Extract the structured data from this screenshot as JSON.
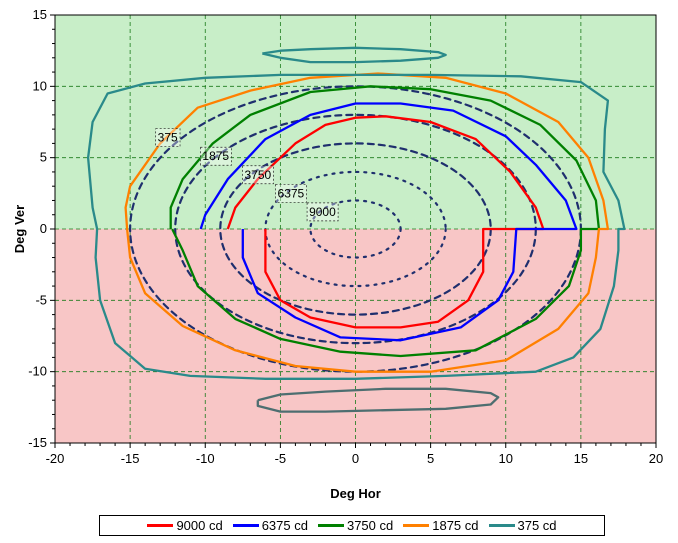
{
  "chart_data": {
    "type": "line",
    "title": "",
    "xlabel": "Deg Hor",
    "ylabel": "Deg Ver",
    "xlim": [
      -20,
      20
    ],
    "ylim": [
      -15,
      15
    ],
    "xticks": [
      "-20",
      "-15",
      "-10",
      "-5",
      "0",
      "5",
      "10",
      "15",
      "20"
    ],
    "yticks": [
      "15",
      "10",
      "5",
      "0",
      "-5",
      "-10",
      "-15"
    ],
    "grid": true,
    "legend_position": "bottom",
    "background_bands": [
      {
        "y": [
          0,
          15
        ],
        "color": "#c8eec8"
      },
      {
        "y": [
          -15,
          0
        ],
        "color": "#f8c6c6"
      }
    ],
    "series": [
      {
        "name": "9000 cd",
        "color": "#ff0000",
        "points": [
          [
            -6,
            0
          ],
          [
            -6,
            -3
          ],
          [
            -5,
            -5
          ],
          [
            -3,
            -6.2
          ],
          [
            0,
            -6.9
          ],
          [
            3,
            -6.9
          ],
          [
            5.5,
            -6.5
          ],
          [
            7.5,
            -5
          ],
          [
            8.5,
            -3
          ],
          [
            8.5,
            0
          ],
          [
            12.5,
            0
          ],
          [
            12,
            1.5
          ],
          [
            10.3,
            4
          ],
          [
            8,
            6.3
          ],
          [
            5,
            7.5
          ],
          [
            2,
            7.9
          ],
          [
            0,
            7.8
          ],
          [
            -2,
            7.3
          ],
          [
            -4,
            6
          ],
          [
            -6.5,
            3.5
          ],
          [
            -8,
            1.5
          ],
          [
            -8.5,
            0
          ]
        ]
      },
      {
        "name": "6375 cd",
        "color": "#0000ff",
        "points": [
          [
            -7.5,
            0
          ],
          [
            -7.5,
            -2
          ],
          [
            -6.5,
            -4.5
          ],
          [
            -4,
            -6.2
          ],
          [
            -1,
            -7.6
          ],
          [
            3,
            -7.8
          ],
          [
            7,
            -6.9
          ],
          [
            9.5,
            -5
          ],
          [
            10.5,
            -3
          ],
          [
            10.7,
            0
          ],
          [
            14.7,
            0
          ],
          [
            14,
            2
          ],
          [
            12,
            4.5
          ],
          [
            10,
            6.5
          ],
          [
            6.5,
            8.3
          ],
          [
            3,
            8.8
          ],
          [
            0,
            8.8
          ],
          [
            -3,
            8
          ],
          [
            -6,
            6.3
          ],
          [
            -8.5,
            3.5
          ],
          [
            -10,
            1
          ],
          [
            -10.3,
            0
          ]
        ]
      },
      {
        "name": "3750 cd",
        "color": "#008000",
        "points": [
          [
            -12.2,
            0
          ],
          [
            -11.5,
            -1.5
          ],
          [
            -10.5,
            -4
          ],
          [
            -8,
            -6.3
          ],
          [
            -5,
            -7.7
          ],
          [
            -1,
            -8.6
          ],
          [
            3,
            -8.9
          ],
          [
            8,
            -8.5
          ],
          [
            12,
            -6.3
          ],
          [
            14.2,
            -4
          ],
          [
            15,
            -1.5
          ],
          [
            15,
            0
          ],
          [
            16.2,
            0
          ],
          [
            16,
            2
          ],
          [
            14.7,
            4.8
          ],
          [
            12.3,
            7.3
          ],
          [
            9,
            9
          ],
          [
            5,
            9.8
          ],
          [
            1,
            10
          ],
          [
            -3,
            9.6
          ],
          [
            -7,
            8
          ],
          [
            -9.5,
            6
          ],
          [
            -11.5,
            3.5
          ],
          [
            -12.3,
            1.5
          ],
          [
            -12.3,
            0
          ]
        ]
      },
      {
        "name": "1875 cd",
        "color": "#ff8000",
        "points": [
          [
            -15.2,
            0
          ],
          [
            -15,
            -2
          ],
          [
            -14,
            -4.5
          ],
          [
            -11.5,
            -6.8
          ],
          [
            -8,
            -8.5
          ],
          [
            -4,
            -9.6
          ],
          [
            0,
            -10
          ],
          [
            5,
            -10
          ],
          [
            10,
            -9.2
          ],
          [
            13.5,
            -7
          ],
          [
            15.5,
            -4.5
          ],
          [
            16,
            -2
          ],
          [
            16.2,
            0
          ],
          [
            16.8,
            0
          ],
          [
            16.5,
            2
          ],
          [
            15.5,
            5
          ],
          [
            13.5,
            7.5
          ],
          [
            10,
            9.5
          ],
          [
            6,
            10.6
          ],
          [
            1.5,
            10.9
          ],
          [
            -3,
            10.6
          ],
          [
            -7,
            9.7
          ],
          [
            -10.5,
            8.5
          ],
          [
            -13,
            6
          ],
          [
            -15,
            3
          ],
          [
            -15.3,
            1.5
          ],
          [
            -15.2,
            0
          ]
        ]
      },
      {
        "name": "375 cd",
        "color": "#2a8a8a",
        "points": [
          [
            -17.2,
            0
          ],
          [
            -17.3,
            -2
          ],
          [
            -17,
            -5
          ],
          [
            -16,
            -8
          ],
          [
            -14,
            -9.8
          ],
          [
            -11,
            -10.3
          ],
          [
            -6,
            -10.5
          ],
          [
            0,
            -10.5
          ],
          [
            6,
            -10.3
          ],
          [
            12,
            -10
          ],
          [
            14.5,
            -9
          ],
          [
            16.3,
            -7
          ],
          [
            17.2,
            -4
          ],
          [
            17.5,
            -1.5
          ],
          [
            17.5,
            0
          ],
          [
            17.9,
            0
          ],
          [
            17.5,
            2
          ],
          [
            16.5,
            4
          ],
          [
            16.6,
            7
          ],
          [
            16.8,
            9
          ],
          [
            15,
            10.3
          ],
          [
            11,
            10.7
          ],
          [
            5,
            10.8
          ],
          [
            0,
            10.8
          ],
          [
            -5,
            10.8
          ],
          [
            -10,
            10.6
          ],
          [
            -14,
            10.2
          ],
          [
            -16.5,
            9.5
          ],
          [
            -17.5,
            7.5
          ],
          [
            -17.8,
            5
          ],
          [
            -17.5,
            1.5
          ],
          [
            -17.2,
            0
          ]
        ]
      },
      {
        "name": "375 cd",
        "show_in_legend": false,
        "color": "#2a8a8a",
        "points": [
          [
            -6.2,
            12.3
          ],
          [
            -5,
            12
          ],
          [
            -3,
            11.7
          ],
          [
            0,
            11.7
          ],
          [
            3,
            11.8
          ],
          [
            5.5,
            12
          ],
          [
            6,
            12.2
          ],
          [
            5.5,
            12.4
          ],
          [
            3,
            12.6
          ],
          [
            0,
            12.7
          ],
          [
            -3,
            12.6
          ],
          [
            -5,
            12.5
          ],
          [
            -6.2,
            12.3
          ]
        ]
      },
      {
        "name": "375 cd",
        "show_in_legend": false,
        "color": "#4d6e70",
        "points": [
          [
            -6.5,
            -12
          ],
          [
            -5,
            -11.6
          ],
          [
            -2,
            -11.4
          ],
          [
            2,
            -11.2
          ],
          [
            6,
            -11.2
          ],
          [
            9,
            -11.5
          ],
          [
            9.5,
            -11.8
          ],
          [
            9,
            -12.3
          ],
          [
            6,
            -12.6
          ],
          [
            2,
            -12.7
          ],
          [
            -2,
            -12.8
          ],
          [
            -5,
            -12.8
          ],
          [
            -6.5,
            -12.4
          ],
          [
            -6.5,
            -12
          ]
        ]
      }
    ],
    "reference_ellipses": [
      {
        "label": "9000",
        "color": "#1f2f6e",
        "style": "dotted",
        "cx": 0,
        "cy": 0,
        "rx": 3,
        "ry": 2
      },
      {
        "label": "6375",
        "color": "#1f2f6e",
        "style": "dotted",
        "cx": 0,
        "cy": 0,
        "rx": 6,
        "ry": 4
      },
      {
        "label": "3750",
        "color": "#1f2f6e",
        "style": "dashed",
        "cx": 0,
        "cy": 0,
        "rx": 9,
        "ry": 6
      },
      {
        "label": "1875",
        "color": "#1f2f6e",
        "style": "dashed",
        "cx": 0,
        "cy": 0,
        "rx": 12,
        "ry": 8
      },
      {
        "label": "375",
        "color": "#1f2f6e",
        "style": "dashed",
        "cx": 0,
        "cy": 0,
        "rx": 15,
        "ry": 10
      }
    ],
    "annotations": [
      {
        "text": "375",
        "x": -12.5,
        "y": 6.4
      },
      {
        "text": "1875",
        "x": -9.3,
        "y": 5.1
      },
      {
        "text": "3750",
        "x": -6.5,
        "y": 3.8
      },
      {
        "text": "6375",
        "x": -4.3,
        "y": 2.5
      },
      {
        "text": "9000",
        "x": -2.2,
        "y": 1.2
      }
    ]
  },
  "legend": [
    {
      "label": "9000 cd",
      "color": "#ff0000"
    },
    {
      "label": "6375 cd",
      "color": "#0000ff"
    },
    {
      "label": "3750 cd",
      "color": "#008000"
    },
    {
      "label": "1875 cd",
      "color": "#ff8000"
    },
    {
      "label": "375 cd",
      "color": "#2a8a8a"
    }
  ]
}
